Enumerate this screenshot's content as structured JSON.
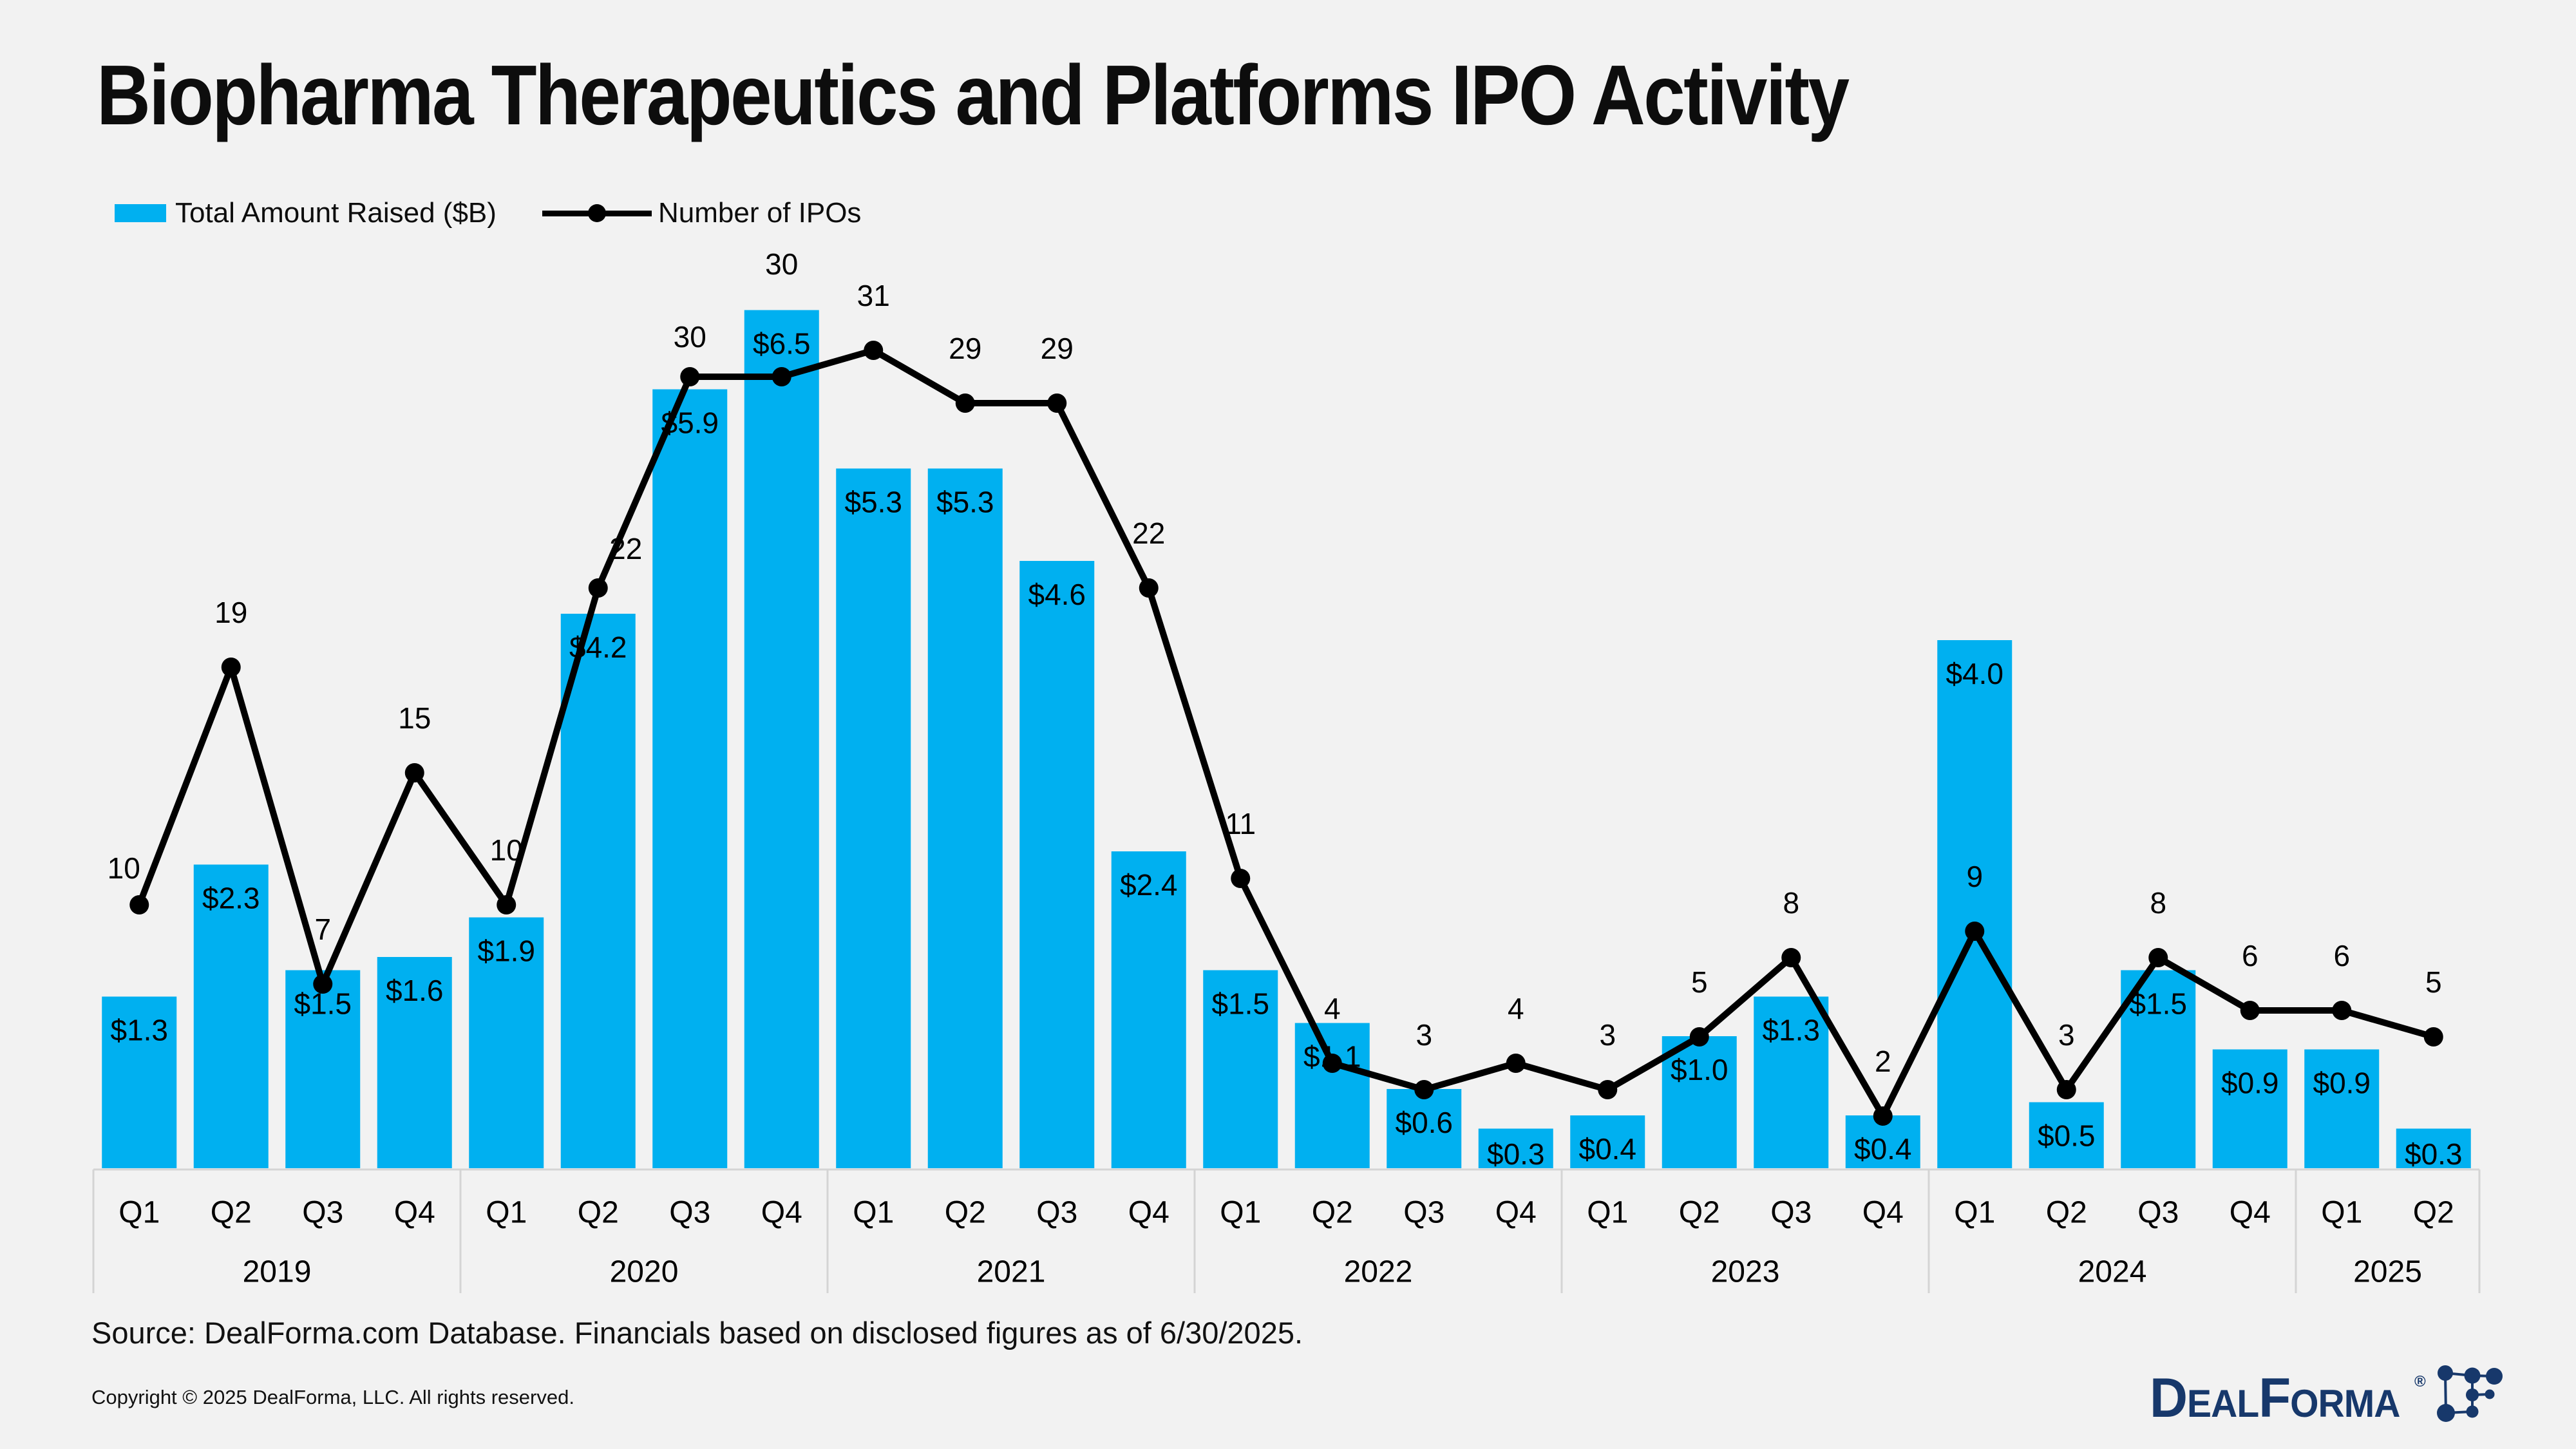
{
  "title": "Biopharma Therapeutics and Platforms IPO Activity",
  "legend": [
    {
      "label": "Total Amount Raised ($B)",
      "marker": "bar-swatch"
    },
    {
      "label": "Number of IPOs",
      "marker": "line-with-dot"
    }
  ],
  "colors": {
    "bar": "#00B0F0",
    "line": "#000000",
    "background": "#F2F2F2",
    "axis": "#D4D4D4",
    "label_text": "#000000",
    "logo_navy": "#17386B"
  },
  "chart_data": {
    "type": "combo",
    "title": "Biopharma Therapeutics and Platforms IPO Activity",
    "gridlines": false,
    "legend_position": "top-left",
    "quarters": [
      "Q1",
      "Q2",
      "Q3",
      "Q4",
      "Q1",
      "Q2",
      "Q3",
      "Q4",
      "Q1",
      "Q2",
      "Q3",
      "Q4",
      "Q1",
      "Q2",
      "Q3",
      "Q4",
      "Q1",
      "Q2",
      "Q3",
      "Q4",
      "Q1",
      "Q2",
      "Q3",
      "Q4",
      "Q1",
      "Q2"
    ],
    "year_groups": [
      {
        "label": "2019",
        "quarters": 4
      },
      {
        "label": "2020",
        "quarters": 4
      },
      {
        "label": "2021",
        "quarters": 4
      },
      {
        "label": "2022",
        "quarters": 4
      },
      {
        "label": "2023",
        "quarters": 4
      },
      {
        "label": "2024",
        "quarters": 4
      },
      {
        "label": "2025",
        "quarters": 2
      }
    ],
    "series": [
      {
        "name": "Total Amount Raised ($B)",
        "type": "bar",
        "label_prefix": "$",
        "label_decimals": 1,
        "values": [
          1.3,
          2.3,
          1.5,
          1.6,
          1.9,
          4.2,
          5.9,
          6.5,
          5.3,
          5.3,
          4.6,
          2.4,
          1.5,
          1.1,
          0.6,
          0.3,
          0.4,
          1.0,
          1.3,
          0.4,
          4.0,
          0.5,
          1.5,
          0.9,
          0.9,
          0.3
        ]
      },
      {
        "name": "Number of IPOs",
        "type": "line",
        "values": [
          10,
          19,
          7,
          15,
          10,
          22,
          30,
          30,
          31,
          29,
          29,
          22,
          11,
          4,
          3,
          4,
          3,
          5,
          8,
          2,
          9,
          3,
          8,
          6,
          6,
          5
        ]
      }
    ]
  },
  "source_note": "Source: DealForma.com Database. Financials based on disclosed figures as of 6/30/2025.",
  "copyright_note": "Copyright © 2025 DealForma, LLC. All rights reserved.",
  "logo": {
    "brand": "DealForma",
    "registered": "®"
  }
}
